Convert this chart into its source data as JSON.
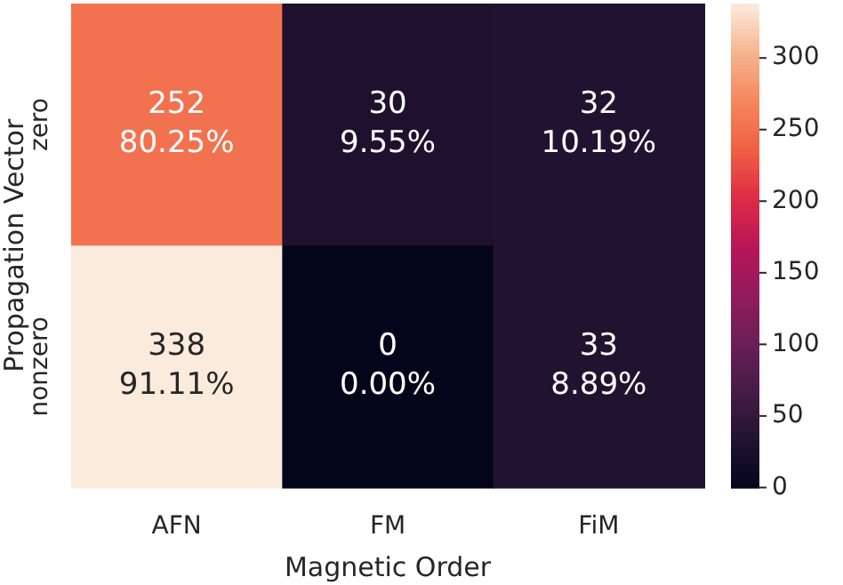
{
  "chart_data": {
    "type": "heatmap",
    "xlabel": "Magnetic Order",
    "ylabel": "Propagation Vector",
    "categories": [
      "AFN",
      "FM",
      "FiM"
    ],
    "y_categories": [
      "zero",
      "nonzero"
    ],
    "cells": [
      [
        252,
        30,
        32
      ],
      [
        338,
        0,
        33
      ]
    ],
    "cell_labels": [
      [
        "252\n80.25%",
        "30\n9.55%",
        "32\n10.19%"
      ],
      [
        "338\n91.11%",
        "0\n0.00%",
        "33\n8.89%"
      ]
    ],
    "clim": [
      0,
      338
    ],
    "cticks": [
      0,
      50,
      100,
      150,
      200,
      250,
      300
    ]
  }
}
